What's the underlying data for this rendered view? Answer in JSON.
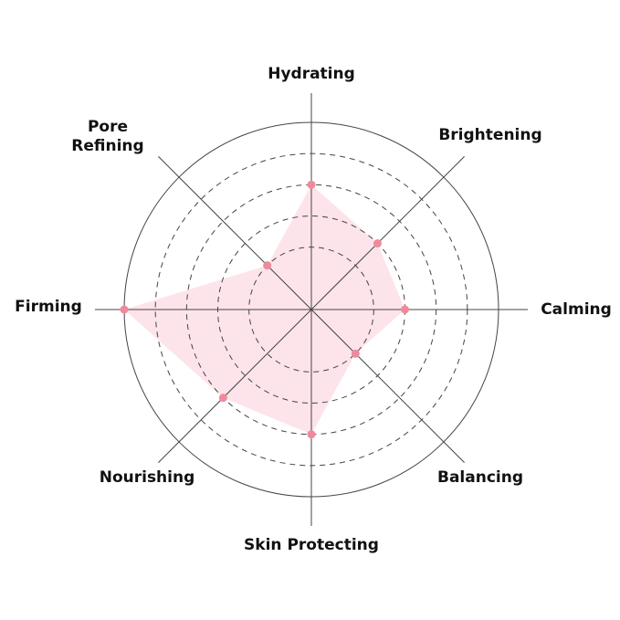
{
  "chart_data": {
    "type": "radar",
    "axes": [
      "Hydrating",
      "Brightening",
      "Calming",
      "Balancing",
      "Skin Protecting",
      "Nourishing",
      "Firming",
      "Pore Refining"
    ],
    "axis_label_lines": [
      [
        "Hydrating"
      ],
      [
        "Brightening"
      ],
      [
        "Calming"
      ],
      [
        "Balancing"
      ],
      [
        "Skin Protecting"
      ],
      [
        "Nourishing"
      ],
      [
        "Firming"
      ],
      [
        "Pore",
        "Refining"
      ]
    ],
    "values": [
      4,
      3,
      3,
      2,
      4,
      4,
      6,
      2
    ],
    "rlim": [
      0,
      6
    ],
    "rings": [
      2,
      3,
      4,
      5
    ],
    "outer_ring": 6,
    "grid": true,
    "colors": {
      "fill": "#fde4eb",
      "point": "#ee8a9c",
      "grid": "#444444"
    }
  }
}
